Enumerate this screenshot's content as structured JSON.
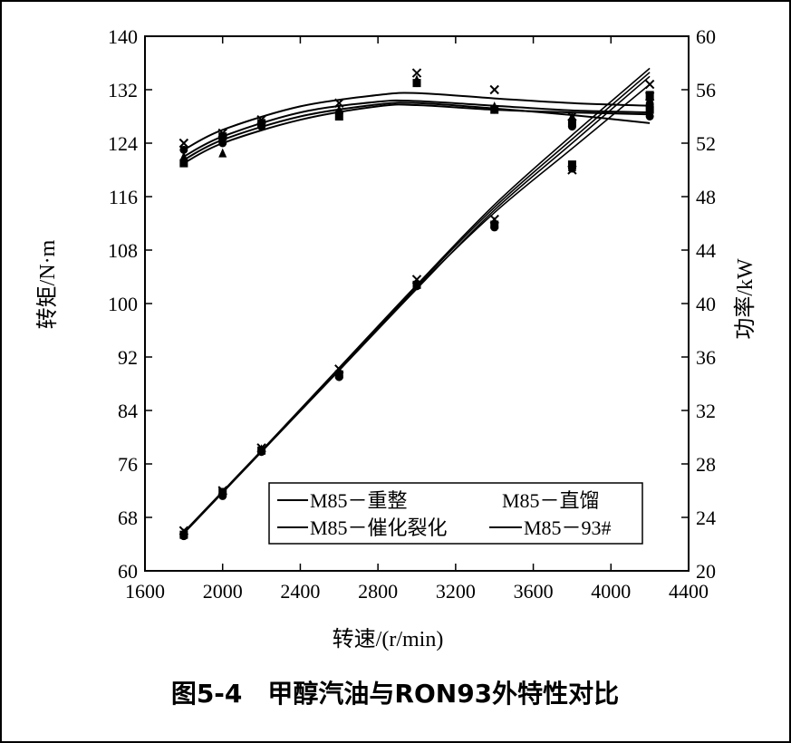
{
  "caption": "图5-4　甲醇汽油与RON93外特性对比",
  "chart_data": {
    "type": "line",
    "title": "图5-4　甲醇汽油与RON93外特性对比",
    "xlabel": "转速/(r/min)",
    "ylabel_left": "转矩/N·m",
    "ylabel_right": "功率/kW",
    "xlim": [
      1600,
      4400
    ],
    "ylim_left": [
      60,
      140
    ],
    "ylim_right": [
      20,
      60
    ],
    "x_ticks": [
      "1600",
      "2000",
      "2400",
      "2800",
      "3200",
      "3600",
      "4000",
      "4400"
    ],
    "y_left_ticks": [
      "60",
      "68",
      "76",
      "84",
      "92",
      "100",
      "108",
      "116",
      "124",
      "132",
      "140"
    ],
    "y_right_ticks": [
      "20",
      "24",
      "28",
      "32",
      "36",
      "40",
      "44",
      "48",
      "52",
      "56",
      "60"
    ],
    "grid": false,
    "legend_placement": "bottom-center",
    "legend": [
      "M85－重整",
      "M85－直馏",
      "M85－催化裂化",
      "M85－93#"
    ],
    "torque_series": [
      {
        "name": "M85－重整",
        "axis": "left",
        "marker": "circle",
        "x": [
          1800,
          2000,
          2200,
          2600,
          3000,
          3400,
          3800,
          4200
        ],
        "y": [
          123,
          124,
          126.5,
          128.5,
          133,
          129,
          126.5,
          128
        ]
      },
      {
        "name": "M85－直馏",
        "axis": "left",
        "marker": "triangle",
        "x": [
          1800,
          2000,
          2200,
          2600,
          3000,
          3400,
          3800,
          4200
        ],
        "y": [
          122,
          122.5,
          127,
          129,
          133.5,
          129.5,
          128,
          130
        ]
      },
      {
        "name": "M85－催化裂化",
        "axis": "left",
        "marker": "square",
        "x": [
          1800,
          2000,
          2200,
          2600,
          3000,
          3400,
          3800,
          4200
        ],
        "y": [
          121,
          125,
          127,
          128,
          133,
          129,
          127,
          129
        ]
      },
      {
        "name": "M85－93#",
        "axis": "left",
        "marker": "x",
        "x": [
          1800,
          2000,
          2200,
          2600,
          3000,
          3400,
          3800,
          4200
        ],
        "y": [
          124,
          125.5,
          127.5,
          130,
          134.5,
          132,
          128,
          131
        ]
      }
    ],
    "power_series": [
      {
        "name": "M85－重整",
        "axis": "right",
        "marker": "circle",
        "x": [
          1800,
          2000,
          2200,
          2600,
          3000,
          3400,
          3800,
          4200
        ],
        "y": [
          22.6,
          25.6,
          28.9,
          34.5,
          41.3,
          45.7,
          50.1,
          54.9
        ]
      },
      {
        "name": "M85－直馏",
        "axis": "right",
        "marker": "triangle",
        "x": [
          1800,
          2000,
          2200,
          2600,
          3000,
          3400,
          3800,
          4200
        ],
        "y": [
          22.8,
          25.8,
          29.1,
          34.9,
          41.5,
          46.1,
          50.2,
          55.3
        ]
      },
      {
        "name": "M85－催化裂化",
        "axis": "right",
        "marker": "square",
        "x": [
          1800,
          2000,
          2200,
          2600,
          3000,
          3400,
          3800,
          4200
        ],
        "y": [
          22.7,
          25.9,
          29.0,
          34.7,
          41.4,
          45.9,
          50.4,
          55.6
        ]
      },
      {
        "name": "M85－93#",
        "axis": "right",
        "marker": "x",
        "x": [
          1800,
          2000,
          2200,
          2600,
          3000,
          3400,
          3800,
          4200
        ],
        "y": [
          23.0,
          26.0,
          29.2,
          35.1,
          41.8,
          46.3,
          50.0,
          56.4
        ]
      }
    ],
    "torque_fits": [
      {
        "name": "M85－重整",
        "x": [
          1800,
          2000,
          2400,
          2800,
          3000,
          3400,
          3800,
          4200
        ],
        "y": [
          121.5,
          124.5,
          128.0,
          129.8,
          130.0,
          129.2,
          128.2,
          127.0
        ]
      },
      {
        "name": "M85－直馏",
        "x": [
          1800,
          2000,
          2400,
          2800,
          3000,
          3400,
          3800,
          4200
        ],
        "y": [
          121.0,
          124.0,
          127.5,
          129.5,
          129.7,
          129.0,
          128.6,
          128.3
        ]
      },
      {
        "name": "M85－催化裂化",
        "x": [
          1800,
          2000,
          2400,
          2800,
          3000,
          3400,
          3800,
          4200
        ],
        "y": [
          122.0,
          125.0,
          128.6,
          130.2,
          130.3,
          129.6,
          128.9,
          128.6
        ]
      },
      {
        "name": "M85－93#",
        "x": [
          1800,
          2000,
          2400,
          2800,
          3000,
          3400,
          3800,
          4200
        ],
        "y": [
          123.0,
          126.0,
          129.5,
          131.2,
          131.5,
          130.7,
          130.0,
          129.6
        ]
      }
    ],
    "power_fits": [
      {
        "name": "M85－重整",
        "x": [
          1800,
          2200,
          2600,
          3000,
          3400,
          3800,
          4200
        ],
        "y": [
          22.8,
          28.9,
          35.0,
          41.2,
          46.8,
          51.6,
          56.4
        ]
      },
      {
        "name": "M85－直馏",
        "x": [
          1800,
          2200,
          2600,
          3000,
          3400,
          3800,
          4200
        ],
        "y": [
          22.8,
          28.9,
          35.0,
          41.1,
          47.0,
          52.0,
          57.0
        ]
      },
      {
        "name": "M85－催化裂化",
        "x": [
          1800,
          2200,
          2600,
          3000,
          3400,
          3800,
          4200
        ],
        "y": [
          22.9,
          29.0,
          35.1,
          41.3,
          47.2,
          52.3,
          57.3
        ]
      },
      {
        "name": "M85－93#",
        "x": [
          1800,
          2200,
          2600,
          3000,
          3400,
          3800,
          4200
        ],
        "y": [
          22.9,
          29.0,
          35.2,
          41.4,
          47.4,
          52.6,
          57.6
        ]
      }
    ]
  }
}
